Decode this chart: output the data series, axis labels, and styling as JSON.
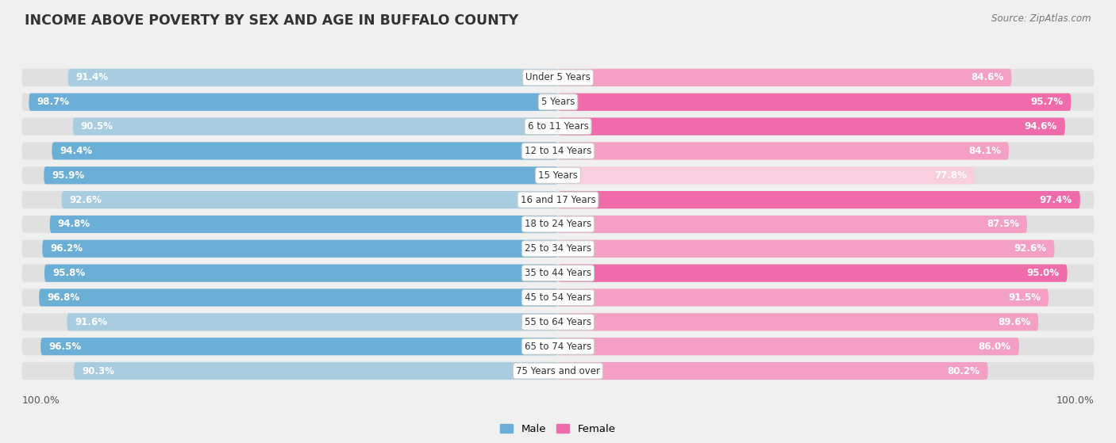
{
  "title": "INCOME ABOVE POVERTY BY SEX AND AGE IN BUFFALO COUNTY",
  "source": "Source: ZipAtlas.com",
  "categories": [
    "Under 5 Years",
    "5 Years",
    "6 to 11 Years",
    "12 to 14 Years",
    "15 Years",
    "16 and 17 Years",
    "18 to 24 Years",
    "25 to 34 Years",
    "35 to 44 Years",
    "45 to 54 Years",
    "55 to 64 Years",
    "65 to 74 Years",
    "75 Years and over"
  ],
  "male_values": [
    91.4,
    98.7,
    90.5,
    94.4,
    95.9,
    92.6,
    94.8,
    96.2,
    95.8,
    96.8,
    91.6,
    96.5,
    90.3
  ],
  "female_values": [
    84.6,
    95.7,
    94.6,
    84.1,
    77.8,
    97.4,
    87.5,
    92.6,
    95.0,
    91.5,
    89.6,
    86.0,
    80.2
  ],
  "male_colors": [
    "#a8cce0",
    "#6baed6",
    "#a8cce0",
    "#6baed6",
    "#6baed6",
    "#a8cce0",
    "#6baed6",
    "#6baed6",
    "#6baed6",
    "#6baed6",
    "#a8cce0",
    "#6baed6",
    "#a8cce0"
  ],
  "female_colors": [
    "#f4a0c4",
    "#f06baa",
    "#f06baa",
    "#f4a0c4",
    "#f9cfe0",
    "#f06baa",
    "#f4a0c4",
    "#f4a0c4",
    "#f06baa",
    "#f4a0c4",
    "#f4a0c4",
    "#f4a0c4",
    "#f4a0c4"
  ],
  "bg_color": "#f0f0f0",
  "bar_bg_color": "#e0e0e0",
  "white_bg": "#ffffff",
  "axis_label": "100.0%",
  "legend_male": "Male",
  "legend_female": "Female",
  "legend_male_color": "#6baed6",
  "legend_female_color": "#f06baa"
}
